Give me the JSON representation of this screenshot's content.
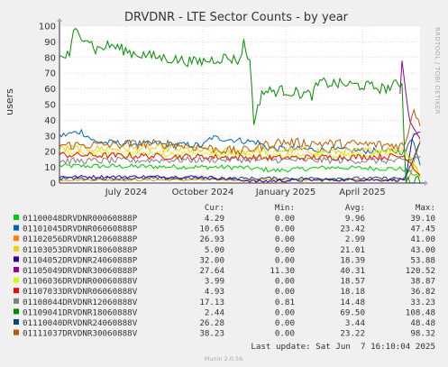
{
  "chart_data": {
    "type": "line",
    "title": "DRVDNR - LTE Sector Counts - by year",
    "ylabel": "users",
    "side_label": "RRDTOOL / TOBI OETIKER",
    "x_ticks": [
      "July 2024",
      "October 2024",
      "January 2025",
      "April 2025"
    ],
    "y_ticks": [
      0,
      10,
      20,
      30,
      40,
      50,
      60,
      70,
      80,
      90,
      100
    ],
    "ylim": [
      0,
      100
    ],
    "grid": true,
    "legend_headers": {
      "cur": "Cur:",
      "min": "Min:",
      "avg": "Avg:",
      "max": "Max:"
    },
    "series": [
      {
        "name": "01100048DRVDNR00060888P",
        "color": "#00cc00",
        "cur": "4.29",
        "min": "0.00",
        "avg": "9.96",
        "max": "39.10"
      },
      {
        "name": "01101045DRVDNR06060888P",
        "color": "#0066b3",
        "cur": "10.65",
        "min": "0.00",
        "avg": "23.42",
        "max": "47.45"
      },
      {
        "name": "01102056DRVDNR12060888P",
        "color": "#ff8000",
        "cur": "26.93",
        "min": "0.00",
        "avg": "2.99",
        "max": "41.00"
      },
      {
        "name": "01103053DRVDNR18060888P",
        "color": "#ffcc00",
        "cur": "5.00",
        "min": "0.00",
        "avg": "21.01",
        "max": "43.00"
      },
      {
        "name": "01104052DRVDNR24060888P",
        "color": "#330099",
        "cur": "32.00",
        "min": "0.00",
        "avg": "18.39",
        "max": "53.88"
      },
      {
        "name": "01105049DRVDNR30060888P",
        "color": "#990099",
        "cur": "27.64",
        "min": "11.30",
        "avg": "40.31",
        "max": "120.52"
      },
      {
        "name": "01106036DRVDNR00060888V",
        "color": "#ccff00",
        "cur": "3.99",
        "min": "0.00",
        "avg": "18.57",
        "max": "38.87"
      },
      {
        "name": "01107033DRVDNR06060888V",
        "color": "#ff0000",
        "cur": "4.93",
        "min": "0.00",
        "avg": "18.18",
        "max": "36.82"
      },
      {
        "name": "01108044DRVDNR12060888V",
        "color": "#808080",
        "cur": "17.13",
        "min": "0.81",
        "avg": "14.48",
        "max": "33.23"
      },
      {
        "name": "01109041DRVDNR18060888V",
        "color": "#008f00",
        "cur": "2.44",
        "min": "0.00",
        "avg": "69.50",
        "max": "108.48"
      },
      {
        "name": "01110040DRVDNR24060888V",
        "color": "#00487d",
        "cur": "26.28",
        "min": "0.00",
        "avg": "3.44",
        "max": "48.48"
      },
      {
        "name": "01111037DRVDNR30060888V",
        "color": "#b35a00",
        "cur": "38.23",
        "min": "0.00",
        "avg": "23.22",
        "max": "98.32"
      }
    ],
    "last_update": "Last update: Sat Jun  7 16:10:04 2025",
    "footer": "Munin 2.0.56"
  }
}
